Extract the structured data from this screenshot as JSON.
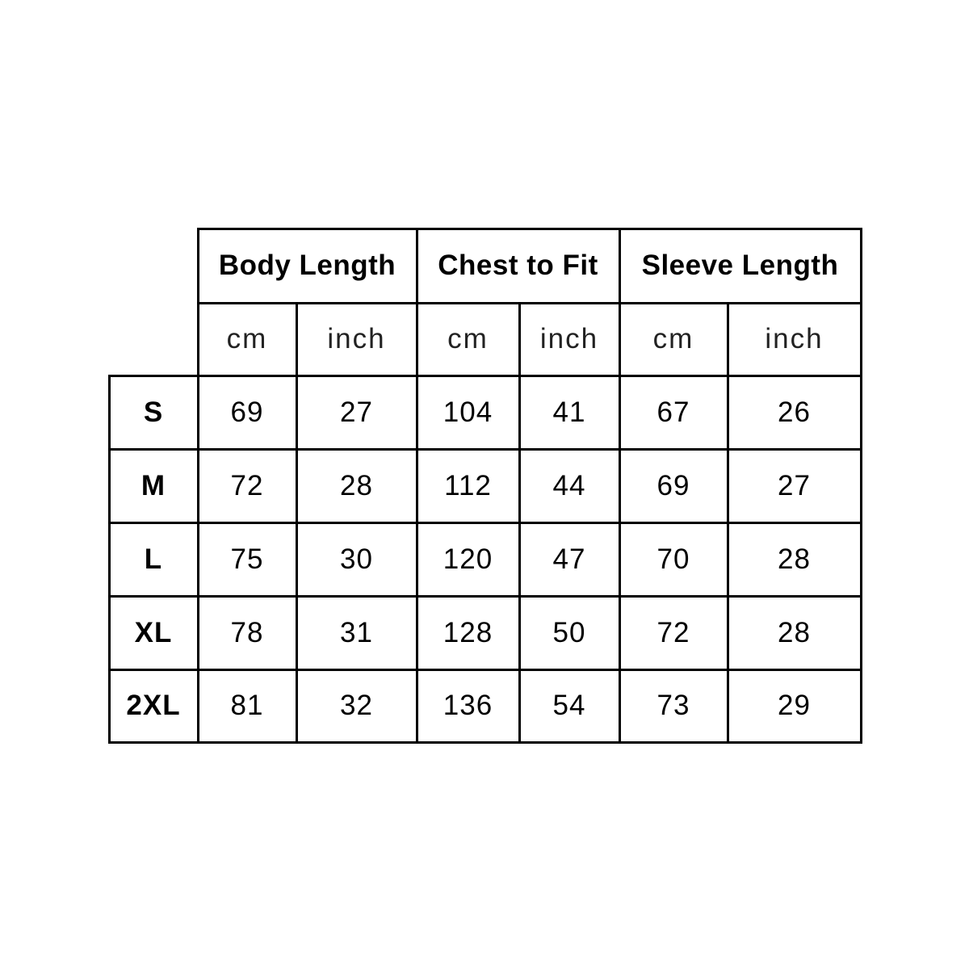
{
  "chart_data": {
    "type": "table",
    "groups": [
      "Body Length",
      "Chest to Fit",
      "Sleeve Length"
    ],
    "units": [
      "cm",
      "inch",
      "cm",
      "inch",
      "cm",
      "inch"
    ],
    "rows": [
      {
        "size": "S",
        "values": [
          "69",
          "27",
          "104",
          "41",
          "67",
          "26"
        ]
      },
      {
        "size": "M",
        "values": [
          "72",
          "28",
          "112",
          "44",
          "69",
          "27"
        ]
      },
      {
        "size": "L",
        "values": [
          "75",
          "30",
          "120",
          "47",
          "70",
          "28"
        ]
      },
      {
        "size": "XL",
        "values": [
          "78",
          "31",
          "128",
          "50",
          "72",
          "28"
        ]
      },
      {
        "size": "2XL",
        "values": [
          "81",
          "32",
          "136",
          "54",
          "73",
          "29"
        ]
      }
    ],
    "colors": {
      "line": "#000000",
      "background": "#ffffff"
    }
  }
}
